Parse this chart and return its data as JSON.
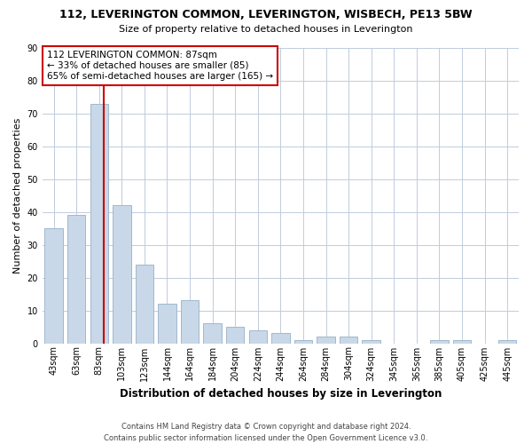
{
  "title": "112, LEVERINGTON COMMON, LEVERINGTON, WISBECH, PE13 5BW",
  "subtitle": "Size of property relative to detached houses in Leverington",
  "xlabel": "Distribution of detached houses by size in Leverington",
  "ylabel": "Number of detached properties",
  "categories": [
    "43sqm",
    "63sqm",
    "83sqm",
    "103sqm",
    "123sqm",
    "144sqm",
    "164sqm",
    "184sqm",
    "204sqm",
    "224sqm",
    "244sqm",
    "264sqm",
    "284sqm",
    "304sqm",
    "324sqm",
    "345sqm",
    "365sqm",
    "385sqm",
    "405sqm",
    "425sqm",
    "445sqm"
  ],
  "values": [
    35,
    39,
    73,
    42,
    24,
    12,
    13,
    6,
    5,
    4,
    3,
    1,
    2,
    2,
    1,
    0,
    0,
    1,
    1,
    0,
    1
  ],
  "bar_color": "#c8d8e8",
  "bar_edge_color": "#a0b8cc",
  "vline_color": "#cc0000",
  "annotation_text": "112 LEVERINGTON COMMON: 87sqm\n← 33% of detached houses are smaller (85)\n65% of semi-detached houses are larger (165) →",
  "annotation_box_color": "#ffffff",
  "annotation_box_edge": "#cc0000",
  "footer": "Contains HM Land Registry data © Crown copyright and database right 2024.\nContains public sector information licensed under the Open Government Licence v3.0.",
  "ylim": [
    0,
    90
  ],
  "background_color": "#ffffff",
  "grid_color": "#c0ccdd",
  "title_fontsize": 9,
  "subtitle_fontsize": 8,
  "ylabel_fontsize": 8,
  "xlabel_fontsize": 8.5,
  "tick_fontsize": 7,
  "footer_fontsize": 6,
  "ann_fontsize": 7.5
}
